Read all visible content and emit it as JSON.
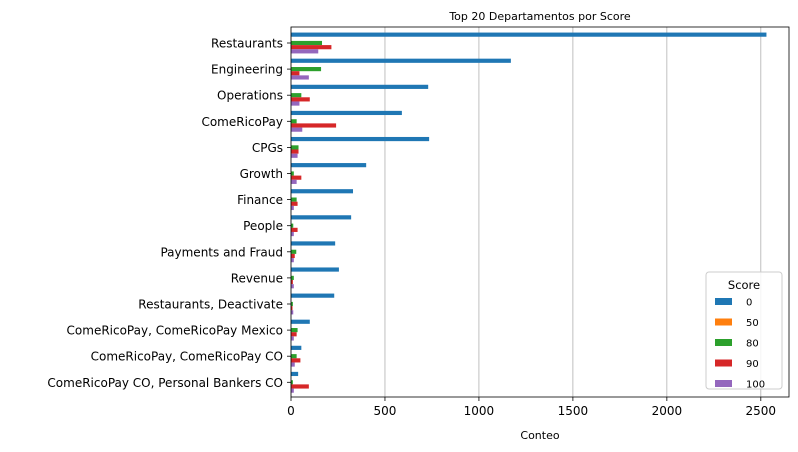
{
  "chart_data": {
    "type": "bar",
    "orientation": "horizontal",
    "title": "Top 20 Departamentos por Score",
    "xlabel": "Conteo",
    "ylabel": "",
    "xlim": [
      0,
      2650
    ],
    "xticks": [
      0,
      500,
      1000,
      1500,
      2000,
      2500
    ],
    "grid": "vertical",
    "legend": {
      "title": "Score",
      "placement": "lower-right"
    },
    "categories": [
      "Restaurants",
      "Engineering",
      "Operations",
      "ComeRicoPay",
      "CPGs",
      "Growth",
      "Finance",
      "People",
      "Payments and Fraud",
      "Revenue",
      "Restaurants, Deactivate",
      "ComeRicoPay, ComeRicoPay Mexico",
      "ComeRicoPay, ComeRicoPay CO",
      "ComeRicoPay CO, Personal Bankers CO"
    ],
    "series": [
      {
        "name": "0",
        "color": "#1f77b4",
        "values": [
          2530,
          1170,
          730,
          590,
          735,
          400,
          330,
          320,
          235,
          255,
          230,
          100,
          55,
          38
        ]
      },
      {
        "name": "50",
        "color": "#ff7f0e",
        "values": [
          2,
          1,
          1,
          1,
          1,
          0,
          0,
          0,
          0,
          0,
          0,
          0,
          0,
          0
        ]
      },
      {
        "name": "80",
        "color": "#2ca02c",
        "values": [
          165,
          160,
          55,
          30,
          40,
          15,
          30,
          12,
          28,
          15,
          10,
          35,
          30,
          10
        ]
      },
      {
        "name": "90",
        "color": "#d62728",
        "values": [
          215,
          45,
          100,
          240,
          40,
          55,
          35,
          35,
          20,
          10,
          8,
          30,
          50,
          95
        ]
      },
      {
        "name": "100",
        "color": "#9467bd",
        "values": [
          145,
          95,
          45,
          60,
          35,
          30,
          15,
          15,
          15,
          15,
          12,
          15,
          20,
          15
        ]
      }
    ]
  }
}
